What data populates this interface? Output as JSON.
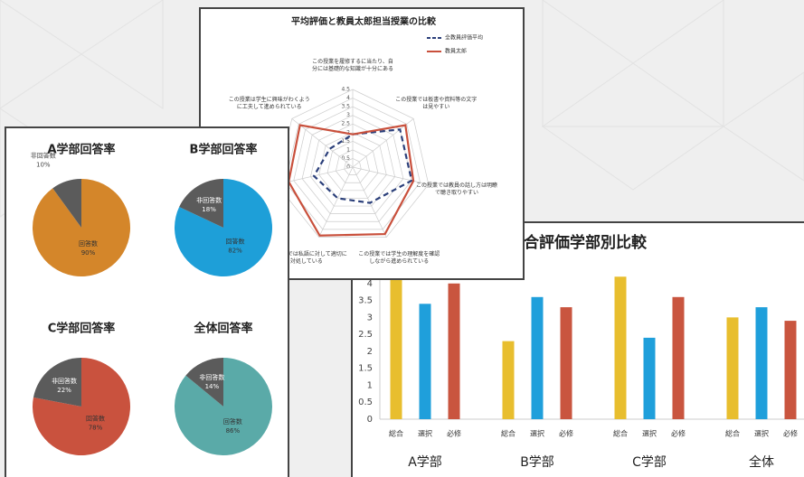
{
  "chart_data": [
    {
      "type": "bar",
      "title": "総合評価学部別比較",
      "categories": [
        "A学部",
        "B学部",
        "C学部",
        "全体"
      ],
      "series": [
        {
          "name": "総合",
          "color": "#e8be2e",
          "values": [
            4.1,
            2.3,
            4.2,
            3.0
          ]
        },
        {
          "name": "選択",
          "color": "#1f9fdb",
          "values": [
            3.4,
            3.6,
            2.4,
            3.3
          ]
        },
        {
          "name": "必修",
          "color": "#c9553f",
          "values": [
            4.0,
            3.3,
            3.6,
            2.9
          ]
        }
      ],
      "ylim": [
        0,
        4.5
      ],
      "yticks": [
        0,
        0.5,
        1,
        1.5,
        2,
        2.5,
        3,
        3.5,
        4
      ],
      "grid": false
    },
    {
      "type": "radar",
      "title": "平均評価と教員太郎担当授業の比較",
      "categories": [
        "この授業を履修するに当たり、自分には基礎的な知識が十分にある",
        "この授業では板書や資料等の文字は見やすい",
        "この授業では教員の話し方は明瞭で聴き取りやすい",
        "この授業では学生の理解度を確認しながら進められている",
        "この授業では私語に対して適切に対処している",
        null,
        "この授業は学生に興味がわくように工夫して進められている"
      ],
      "series": [
        {
          "name": "全教員評価平均",
          "color": "#2b3f7a",
          "dashed": true,
          "values": [
            1.9,
            3.5,
            3.5,
            2.3,
            2.0,
            2.3,
            1.7
          ]
        },
        {
          "name": "教員太郎",
          "color": "#c9503c",
          "dashed": false,
          "values": [
            1.9,
            3.9,
            3.6,
            4.3,
            4.4,
            3.8,
            3.9
          ]
        }
      ],
      "rlim": [
        0,
        4.5
      ],
      "rticks": [
        0,
        0.5,
        1,
        1.5,
        2,
        2.5,
        3,
        3.5,
        4,
        4.5
      ]
    },
    {
      "type": "pie",
      "title": "A学部回答率",
      "categories": [
        "回答数",
        "非回答数"
      ],
      "values": [
        90,
        10
      ],
      "value_labels": [
        "90%",
        "10%"
      ],
      "colors": [
        "#d4862a",
        "#5b5b5b"
      ]
    },
    {
      "type": "pie",
      "title": "B学部回答率",
      "categories": [
        "回答数",
        "非回答数"
      ],
      "values": [
        82,
        18
      ],
      "value_labels": [
        "82%",
        "18%"
      ],
      "colors": [
        "#1e9fd8",
        "#5b5b5b"
      ]
    },
    {
      "type": "pie",
      "title": "C学部回答率",
      "categories": [
        "回答数",
        "非回答数"
      ],
      "values": [
        78,
        22
      ],
      "value_labels": [
        "78%",
        "22%"
      ],
      "colors": [
        "#c9523e",
        "#5b5b5b"
      ]
    },
    {
      "type": "pie",
      "title": "全体回答率",
      "categories": [
        "回答数",
        "非回答数"
      ],
      "values": [
        86,
        14
      ],
      "value_labels": [
        "86%",
        "14%"
      ],
      "colors": [
        "#5aaaa8",
        "#5b5b5b"
      ]
    }
  ]
}
